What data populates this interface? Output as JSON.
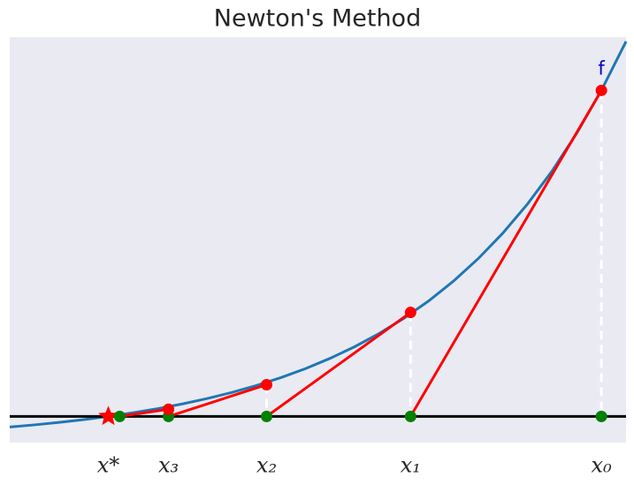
{
  "chart_data": {
    "type": "newton",
    "title": "Newton's Method",
    "annotation": "f",
    "xlim": [
      -2,
      10.5
    ],
    "ylim": [
      -0.8,
      11.6
    ],
    "curve": {
      "color": "#1f77b4",
      "x": [
        -2,
        -1.5,
        -1,
        -0.5,
        0,
        0.5,
        1,
        1.5,
        2,
        2.5,
        3,
        3.5,
        4,
        4.5,
        5,
        5.5,
        6,
        6.5,
        7,
        7.5,
        8,
        8.5,
        9,
        9.5,
        10,
        10.5
      ],
      "values": [
        -0.324,
        -0.258,
        -0.183,
        -0.098,
        0,
        0.111,
        0.238,
        0.382,
        0.546,
        0.732,
        0.945,
        1.187,
        1.463,
        1.778,
        2.135,
        2.543,
        3.007,
        3.535,
        4.138,
        4.823,
        5.604,
        6.493,
        7.505,
        8.658,
        9.971,
        11.466
      ]
    },
    "iterates": {
      "color": "#ff0000",
      "axis_color": "#008000",
      "x": [
        10,
        6.13,
        3.21,
        1.22,
        0.23
      ],
      "values": [
        9.97,
        3.18,
        0.97,
        0.22,
        null
      ],
      "labels": [
        "x₀",
        "x₁",
        "x₂",
        "x₃",
        null
      ]
    },
    "root": {
      "x": 0,
      "label": "x*",
      "color": "#ff0000"
    }
  }
}
